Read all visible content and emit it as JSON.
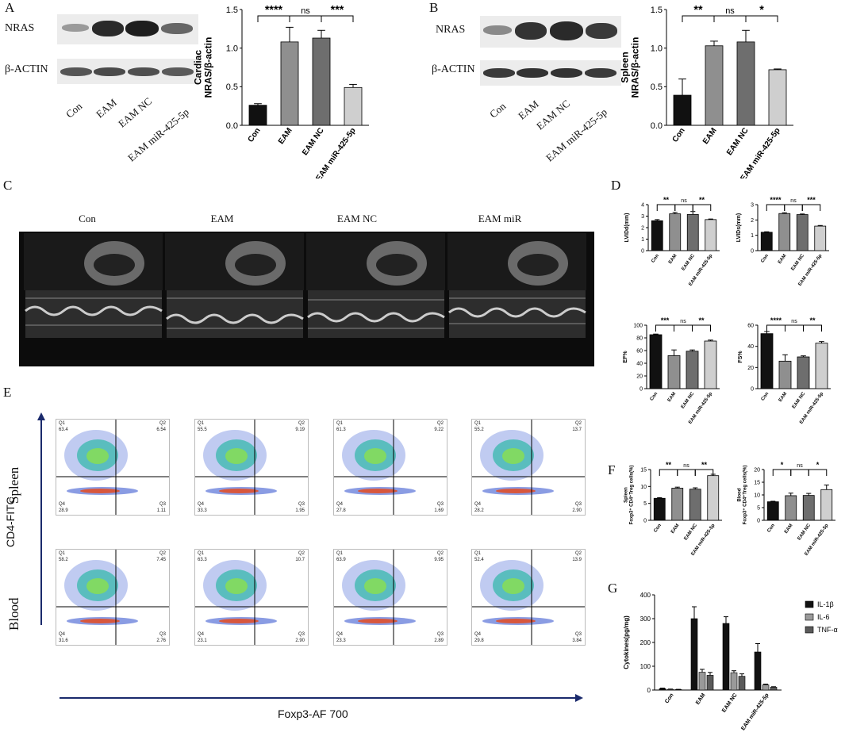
{
  "panels": {
    "A": "A",
    "B": "B",
    "C": "C",
    "D": "D",
    "E": "E",
    "F": "F",
    "G": "G"
  },
  "colors": {
    "con": "#111111",
    "eam": "#8f8f8f",
    "eamnc": "#6e6e6e",
    "mir": "#cfcfcf"
  },
  "blots": {
    "A": {
      "rows": [
        "NRAS",
        "β-ACTIN"
      ],
      "lanes": [
        "Con",
        "EAM",
        "EAM NC",
        "EAM miR-425-5p"
      ]
    },
    "B": {
      "rows": [
        "NRAS",
        "β-ACTIN"
      ],
      "lanes": [
        "Con",
        "EAM",
        "EAM NC",
        "EAM miR-425-5p"
      ]
    }
  },
  "echo": {
    "titles": [
      "Con",
      "EAM",
      "EAM NC",
      "EAM miR"
    ]
  },
  "flow": {
    "ylabel": "CD4-FITC",
    "xlabel": "Foxp3-AF 700",
    "rows": [
      "Spleen",
      "Blood"
    ],
    "plots": [
      [
        {
          "q1": "63.4",
          "q2": "6.54",
          "q3": "1.11",
          "q4": "28.9"
        },
        {
          "q1": "55.5",
          "q2": "9.19",
          "q3": "1.95",
          "q4": "33.3"
        },
        {
          "q1": "61.3",
          "q2": "9.22",
          "q3": "1.69",
          "q4": "27.8"
        },
        {
          "q1": "55.2",
          "q2": "13.7",
          "q3": "2.90",
          "q4": "28.2"
        }
      ],
      [
        {
          "q1": "58.2",
          "q2": "7.45",
          "q3": "2.76",
          "q4": "31.6"
        },
        {
          "q1": "63.3",
          "q2": "10.7",
          "q3": "2.90",
          "q4": "23.1"
        },
        {
          "q1": "63.9",
          "q2": "9.95",
          "q3": "2.89",
          "q4": "23.3"
        },
        {
          "q1": "52.4",
          "q2": "13.9",
          "q3": "3.84",
          "q4": "29.8"
        }
      ]
    ]
  },
  "chart_data": [
    {
      "id": "A",
      "type": "bar",
      "categories": [
        "Con",
        "EAM",
        "EAM NC",
        "EAM miR-425-5p"
      ],
      "values": [
        0.26,
        1.08,
        1.13,
        0.49
      ],
      "errors": [
        0.02,
        0.19,
        0.1,
        0.04
      ],
      "ylabel": "Cardiac\nNRAS/β-actin",
      "ylim": [
        0,
        1.5
      ],
      "yticks": [
        "0.0",
        "0.5",
        "1.0",
        "1.5"
      ],
      "sig": [
        {
          "from": 0,
          "to": 1,
          "label": "****",
          "level": 0
        },
        {
          "from": 1,
          "to": 2,
          "label": "ns",
          "level": 0
        },
        {
          "from": 2,
          "to": 3,
          "label": "***",
          "level": 0
        }
      ]
    },
    {
      "id": "B",
      "type": "bar",
      "categories": [
        "Con",
        "EAM",
        "EAM NC",
        "EAM miR-425-5p"
      ],
      "values": [
        0.39,
        1.03,
        1.08,
        0.72
      ],
      "errors": [
        0.21,
        0.06,
        0.15,
        0.01
      ],
      "ylabel": "Spleen\nNRAS/β-actin",
      "ylim": [
        0,
        1.5
      ],
      "yticks": [
        "0.0",
        "0.5",
        "1.0",
        "1.5"
      ],
      "sig": [
        {
          "from": 0,
          "to": 1,
          "label": "**",
          "level": 0
        },
        {
          "from": 1,
          "to": 2,
          "label": "ns",
          "level": 0
        },
        {
          "from": 2,
          "to": 3,
          "label": "*",
          "level": 0
        }
      ]
    },
    {
      "id": "D1",
      "type": "bar",
      "categories": [
        "Con",
        "EAM",
        "EAM NC",
        "EAM miR-425-5p"
      ],
      "values": [
        2.6,
        3.2,
        3.15,
        2.7
      ],
      "errors": [
        0.1,
        0.12,
        0.25,
        0.05
      ],
      "ylabel": "LVIDd(mm)",
      "ylim": [
        0,
        4
      ],
      "yticks": [
        "0",
        "1",
        "2",
        "3",
        "4"
      ],
      "sig": [
        {
          "from": 0,
          "to": 1,
          "label": "**",
          "level": 0
        },
        {
          "from": 1,
          "to": 2,
          "label": "ns",
          "level": 0
        },
        {
          "from": 2,
          "to": 3,
          "label": "**",
          "level": 0
        }
      ]
    },
    {
      "id": "D2",
      "type": "bar",
      "categories": [
        "Con",
        "EAM",
        "EAM NC",
        "EAM miR-425-5p"
      ],
      "values": [
        1.2,
        2.42,
        2.35,
        1.6
      ],
      "errors": [
        0.03,
        0.05,
        0.04,
        0.04
      ],
      "ylabel": "LVIDs(mm)",
      "ylim": [
        0,
        3
      ],
      "yticks": [
        "0",
        "1",
        "2",
        "3"
      ],
      "sig": [
        {
          "from": 0,
          "to": 1,
          "label": "****",
          "level": 0
        },
        {
          "from": 1,
          "to": 2,
          "label": "ns",
          "level": 0
        },
        {
          "from": 2,
          "to": 3,
          "label": "***",
          "level": 0
        }
      ]
    },
    {
      "id": "D3",
      "type": "bar",
      "categories": [
        "Con",
        "EAM",
        "EAM NC",
        "EAM miR-425-5p"
      ],
      "values": [
        85,
        52,
        59,
        75
      ],
      "errors": [
        1,
        9,
        2,
        1.5
      ],
      "ylabel": "EF%",
      "ylim": [
        0,
        100
      ],
      "yticks": [
        "0",
        "20",
        "40",
        "60",
        "80",
        "100"
      ],
      "sig": [
        {
          "from": 0,
          "to": 1,
          "label": "***",
          "level": 0
        },
        {
          "from": 1,
          "to": 2,
          "label": "ns",
          "level": 0
        },
        {
          "from": 2,
          "to": 3,
          "label": "**",
          "level": 0
        }
      ]
    },
    {
      "id": "D4",
      "type": "bar",
      "categories": [
        "Con",
        "EAM",
        "EAM NC",
        "EAM miR-425-5p"
      ],
      "values": [
        52,
        26,
        30,
        43
      ],
      "errors": [
        2,
        6,
        1,
        1.5
      ],
      "ylabel": "FS%",
      "ylim": [
        0,
        60
      ],
      "yticks": [
        "0",
        "20",
        "40",
        "60"
      ],
      "sig": [
        {
          "from": 0,
          "to": 1,
          "label": "****",
          "level": 0
        },
        {
          "from": 1,
          "to": 2,
          "label": "ns",
          "level": 0
        },
        {
          "from": 2,
          "to": 3,
          "label": "**",
          "level": 0
        }
      ]
    },
    {
      "id": "F1",
      "type": "bar",
      "categories": [
        "Con",
        "EAM",
        "EAM NC",
        "EAM miR-425-5p"
      ],
      "values": [
        6.5,
        9.5,
        9.2,
        13.2
      ],
      "errors": [
        0.2,
        0.3,
        0.4,
        0.4
      ],
      "ylabel": "Spleen\nFoxp3⁺ CD4⁺Treg cells(%)",
      "ylim": [
        0,
        15
      ],
      "yticks": [
        "0",
        "5",
        "10",
        "15"
      ],
      "sig": [
        {
          "from": 0,
          "to": 1,
          "label": "**",
          "level": 0
        },
        {
          "from": 1,
          "to": 2,
          "label": "ns",
          "level": 0
        },
        {
          "from": 2,
          "to": 3,
          "label": "**",
          "level": 0
        }
      ]
    },
    {
      "id": "F2",
      "type": "bar",
      "categories": [
        "Con",
        "EAM",
        "EAM NC",
        "EAM miR-425-5p"
      ],
      "values": [
        7.3,
        9.7,
        9.8,
        12.1
      ],
      "errors": [
        0.2,
        1,
        0.8,
        1.8
      ],
      "ylabel": "Blood\nFoxp3⁺ CD4⁺Treg cells(%)",
      "ylim": [
        0,
        20
      ],
      "yticks": [
        "0",
        "5",
        "10",
        "15",
        "20"
      ],
      "sig": [
        {
          "from": 0,
          "to": 1,
          "label": "*",
          "level": 0
        },
        {
          "from": 1,
          "to": 2,
          "label": "ns",
          "level": 0
        },
        {
          "from": 2,
          "to": 3,
          "label": "*",
          "level": 0
        }
      ]
    },
    {
      "id": "G",
      "type": "bar",
      "categories": [
        "Con",
        "EAM",
        "EAM NC",
        "EAM miR-425-5p"
      ],
      "ylabel": "Cytokines(pg/mg)",
      "ylim": [
        0,
        400
      ],
      "yticks": [
        "0",
        "100",
        "200",
        "300",
        "400"
      ],
      "series": [
        {
          "name": "IL-1β",
          "values": [
            6,
            300,
            280,
            160
          ],
          "errors": [
            2,
            50,
            28,
            35
          ],
          "color": "#111111"
        },
        {
          "name": "IL-6",
          "values": [
            3,
            75,
            73,
            22
          ],
          "errors": [
            1,
            12,
            8,
            3
          ],
          "color": "#9a9a9a"
        },
        {
          "name": "TNF-α",
          "values": [
            2,
            62,
            58,
            12
          ],
          "errors": [
            1,
            12,
            10,
            2
          ],
          "color": "#5a5a5a"
        }
      ]
    }
  ]
}
